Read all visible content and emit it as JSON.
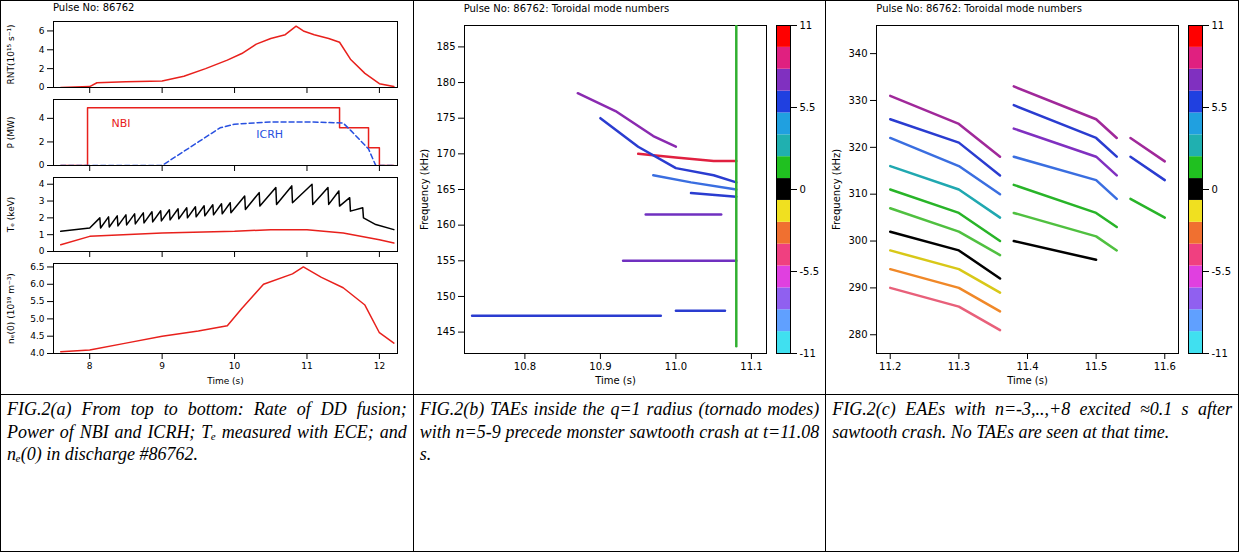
{
  "chart_data": [
    {
      "type": "line",
      "title": "Pulse No: 86762",
      "y_label": "RNT(10¹⁵ s⁻¹)",
      "xlim": [
        7.5,
        12.25
      ],
      "xticks": [
        8,
        9,
        10,
        11,
        12
      ],
      "ylim": [
        0,
        7
      ],
      "yticks": [
        0,
        2,
        4,
        6
      ],
      "series": [
        {
          "color": "#e8201c",
          "line_style": "solid",
          "x": [
            7.6,
            8.0,
            8.1,
            8.5,
            9.0,
            9.3,
            9.6,
            9.9,
            10.1,
            10.3,
            10.5,
            10.7,
            10.85,
            10.95,
            11.1,
            11.3,
            11.45,
            11.6,
            11.8,
            12.0,
            12.2
          ],
          "values": [
            0,
            0.1,
            0.5,
            0.6,
            0.7,
            1.2,
            2.0,
            2.9,
            3.6,
            4.6,
            5.2,
            5.6,
            6.5,
            6.0,
            5.6,
            5.2,
            4.8,
            3.0,
            1.5,
            0.4,
            0.1
          ]
        }
      ]
    },
    {
      "type": "line",
      "y_label": "P (MW)",
      "xlim": [
        7.5,
        12.25
      ],
      "xticks": [
        8,
        9,
        10,
        11,
        12
      ],
      "ylim": [
        0,
        5.6
      ],
      "yticks": [
        0,
        2,
        4
      ],
      "series": [
        {
          "color": "#e8201c",
          "line_style": "solid",
          "x": [
            7.6,
            7.97,
            7.97,
            11.45,
            11.45,
            11.85,
            11.85,
            12.0,
            12.0,
            12.2
          ],
          "values": [
            0,
            0,
            4.9,
            4.9,
            3.2,
            3.2,
            1.5,
            1.5,
            0,
            0
          ]
        },
        {
          "color": "#2850e0",
          "line_style": "dashed",
          "x": [
            7.6,
            9.0,
            9.2,
            9.5,
            9.8,
            10.0,
            10.5,
            11.0,
            11.5,
            11.6,
            11.85,
            11.95,
            12.2
          ],
          "values": [
            0,
            0,
            0.8,
            2.0,
            3.2,
            3.5,
            3.7,
            3.7,
            3.6,
            3.0,
            1.4,
            0,
            0
          ]
        }
      ],
      "annotations": [
        {
          "text": "NBI",
          "x": 8.3,
          "y": 3.6,
          "color": "#e8201c"
        },
        {
          "text": "ICRH",
          "x": 10.3,
          "y": 2.6,
          "color": "#2850e0"
        }
      ]
    },
    {
      "type": "line",
      "y_label": "Tₑ (keV)",
      "xlim": [
        7.5,
        12.25
      ],
      "xticks": [
        8,
        9,
        10,
        11,
        12
      ],
      "ylim": [
        0,
        4.4
      ],
      "yticks": [
        0,
        1,
        2,
        3,
        4
      ],
      "series": [
        {
          "color": "#000000",
          "line_style": "solid",
          "x": [
            7.6,
            8.0,
            8.14,
            8.15,
            8.26,
            8.27,
            8.38,
            8.39,
            8.5,
            8.51,
            8.62,
            8.63,
            8.74,
            8.75,
            8.86,
            8.87,
            8.98,
            8.99,
            9.1,
            9.11,
            9.22,
            9.23,
            9.34,
            9.35,
            9.46,
            9.47,
            9.58,
            9.59,
            9.7,
            9.71,
            9.82,
            9.83,
            9.94,
            9.95,
            10.14,
            10.15,
            10.34,
            10.35,
            10.57,
            10.58,
            10.79,
            10.8,
            11.07,
            11.08,
            11.29,
            11.3,
            11.44,
            11.45,
            11.59,
            11.6,
            11.77,
            11.78,
            11.95,
            12.2
          ],
          "values": [
            1.2,
            1.4,
            2.0,
            1.4,
            2.06,
            1.46,
            2.12,
            1.52,
            2.18,
            1.58,
            2.24,
            1.64,
            2.3,
            1.7,
            2.36,
            1.76,
            2.42,
            1.82,
            2.48,
            1.88,
            2.54,
            1.94,
            2.6,
            2.0,
            2.66,
            2.06,
            2.72,
            2.12,
            2.78,
            2.18,
            2.84,
            2.24,
            2.9,
            2.3,
            3.3,
            2.5,
            3.5,
            2.7,
            3.8,
            2.8,
            3.9,
            2.9,
            4.0,
            2.8,
            3.8,
            2.8,
            3.6,
            2.7,
            3.2,
            2.4,
            2.6,
            2.0,
            1.6,
            1.3
          ]
        },
        {
          "color": "#e8201c",
          "line_style": "solid",
          "x": [
            7.6,
            8.0,
            9.0,
            10.0,
            10.5,
            11.0,
            11.5,
            12.0,
            12.2
          ],
          "values": [
            0.4,
            0.9,
            1.1,
            1.2,
            1.3,
            1.3,
            1.1,
            0.7,
            0.5
          ]
        }
      ]
    },
    {
      "type": "line",
      "x_label": "Time (s)",
      "y_label": "nₑ(0) (10¹⁹ m⁻³)",
      "xlim": [
        7.5,
        12.25
      ],
      "xticks": [
        8,
        9,
        10,
        11,
        12
      ],
      "ylim": [
        4.0,
        6.6
      ],
      "yticks": [
        {
          "value": 4,
          "label": "4.0"
        },
        {
          "value": 4.5,
          "label": "4.5"
        },
        {
          "value": 5,
          "label": "5.0"
        },
        {
          "value": 5.5,
          "label": "5.5"
        },
        {
          "value": 6,
          "label": "6.0"
        },
        {
          "value": 6.5,
          "label": "6.5"
        }
      ],
      "series": [
        {
          "color": "#e8201c",
          "line_style": "solid",
          "x": [
            7.6,
            8.0,
            8.5,
            9.0,
            9.5,
            9.9,
            10.1,
            10.4,
            10.8,
            10.95,
            11.2,
            11.5,
            11.8,
            12.0,
            12.2
          ],
          "values": [
            4.05,
            4.1,
            4.3,
            4.5,
            4.65,
            4.8,
            5.3,
            6.0,
            6.3,
            6.5,
            6.2,
            5.9,
            5.4,
            4.6,
            4.3
          ]
        }
      ]
    },
    {
      "type": "line",
      "title": "Pulse No: 86762: Toroidal mode numbers",
      "x_label": "Time (s)",
      "y_label": "Frequency (kHz)",
      "xlim": [
        10.72,
        11.12
      ],
      "xticks": [
        10.8,
        10.9,
        {
          "value": 11,
          "label": "11.0"
        },
        11.1
      ],
      "ylim": [
        142,
        188
      ],
      "yticks": [
        145,
        150,
        155,
        160,
        165,
        170,
        175,
        180,
        185
      ],
      "series": [
        {
          "color": "#2a3cd0",
          "x": [
            10.73,
            10.98
          ],
          "values": [
            147.3,
            147.3
          ]
        },
        {
          "color": "#2a3cd0",
          "x": [
            11.0,
            11.065
          ],
          "values": [
            148,
            148
          ]
        },
        {
          "color": "#7030c0",
          "x": [
            10.93,
            11.08
          ],
          "values": [
            155,
            155
          ]
        },
        {
          "color": "#7030c0",
          "x": [
            10.96,
            11.06
          ],
          "values": [
            161.5,
            161.5
          ]
        },
        {
          "color": "#8a2ab0",
          "x": [
            10.87,
            10.92,
            10.97,
            11.0
          ],
          "values": [
            178.5,
            176,
            172.5,
            171
          ]
        },
        {
          "color": "#e02040",
          "x": [
            10.95,
            11.0,
            11.05,
            11.08
          ],
          "values": [
            170,
            169.5,
            169,
            169
          ]
        },
        {
          "color": "#2a3cd0",
          "x": [
            10.9,
            10.95,
            11.0,
            11.05,
            11.08
          ],
          "values": [
            175,
            171,
            168,
            167,
            166
          ]
        },
        {
          "color": "#3a6ee0",
          "x": [
            10.97,
            11.02,
            11.08
          ],
          "values": [
            167,
            166,
            165
          ]
        },
        {
          "color": "#2a3cd0",
          "x": [
            11.02,
            11.08
          ],
          "values": [
            164.5,
            164
          ]
        },
        {
          "color": "#30b030",
          "x": [
            11.08,
            11.08
          ],
          "values": [
            143,
            188
          ]
        }
      ],
      "colorbar": {
        "range": [
          -11,
          11
        ],
        "ticks": [
          11,
          5.5,
          0,
          -5.5,
          -11
        ],
        "colors": [
          "#40e0f0",
          "#60a0ff",
          "#9060f0",
          "#e040e0",
          "#f04080",
          "#f07030",
          "#f0e020",
          "#000000",
          "#20c020",
          "#20b0b0",
          "#20a0e0",
          "#2040e0",
          "#8030c0",
          "#e02080",
          "#ff0000"
        ]
      }
    },
    {
      "type": "line",
      "title": "Pulse No: 86762: Toroidal mode numbers",
      "x_label": "Time (s)",
      "y_label": "Frequency (kHz)",
      "xlim": [
        11.18,
        11.62
      ],
      "xticks": [
        11.2,
        11.3,
        11.4,
        11.5,
        11.6
      ],
      "ylim": [
        276,
        346
      ],
      "yticks": [
        280,
        290,
        300,
        310,
        320,
        330,
        340
      ],
      "series": [
        {
          "color": "#a0289a",
          "x": [
            11.2,
            11.3,
            11.36
          ],
          "values": [
            331,
            325,
            318
          ]
        },
        {
          "color": "#2a3cd0",
          "x": [
            11.2,
            11.3,
            11.36
          ],
          "values": [
            326,
            321,
            314
          ]
        },
        {
          "color": "#3a6ee0",
          "x": [
            11.2,
            11.3,
            11.36
          ],
          "values": [
            322,
            316,
            310
          ]
        },
        {
          "color": "#20a8b0",
          "x": [
            11.2,
            11.3,
            11.36
          ],
          "values": [
            316,
            311,
            305
          ]
        },
        {
          "color": "#28b428",
          "x": [
            11.2,
            11.3,
            11.36
          ],
          "values": [
            311,
            306,
            300
          ]
        },
        {
          "color": "#50c040",
          "x": [
            11.2,
            11.3,
            11.36
          ],
          "values": [
            307,
            302,
            297
          ]
        },
        {
          "color": "#000000",
          "x": [
            11.2,
            11.3,
            11.36
          ],
          "values": [
            302,
            298,
            292
          ]
        },
        {
          "color": "#d8c818",
          "x": [
            11.2,
            11.3,
            11.36
          ],
          "values": [
            298,
            294,
            289
          ]
        },
        {
          "color": "#f08828",
          "x": [
            11.2,
            11.3,
            11.36
          ],
          "values": [
            294,
            290,
            285
          ]
        },
        {
          "color": "#e8607a",
          "x": [
            11.2,
            11.3,
            11.36
          ],
          "values": [
            290,
            286,
            281
          ]
        },
        {
          "color": "#a0289a",
          "x": [
            11.38,
            11.5,
            11.53
          ],
          "values": [
            333,
            326,
            322
          ]
        },
        {
          "color": "#2a3cd0",
          "x": [
            11.38,
            11.5,
            11.53
          ],
          "values": [
            329,
            322,
            318
          ]
        },
        {
          "color": "#8030c0",
          "x": [
            11.38,
            11.5,
            11.53
          ],
          "values": [
            324,
            318,
            314
          ]
        },
        {
          "color": "#3a6ee0",
          "x": [
            11.38,
            11.5,
            11.53
          ],
          "values": [
            318,
            313,
            309
          ]
        },
        {
          "color": "#28b428",
          "x": [
            11.38,
            11.5,
            11.53
          ],
          "values": [
            312,
            306,
            303
          ]
        },
        {
          "color": "#50c040",
          "x": [
            11.38,
            11.5,
            11.53
          ],
          "values": [
            306,
            301,
            298
          ]
        },
        {
          "color": "#000000",
          "x": [
            11.38,
            11.5
          ],
          "values": [
            300,
            296
          ]
        },
        {
          "color": "#a0289a",
          "x": [
            11.55,
            11.6
          ],
          "values": [
            322,
            317
          ]
        },
        {
          "color": "#2a3cd0",
          "x": [
            11.55,
            11.6
          ],
          "values": [
            318,
            313
          ]
        },
        {
          "color": "#28b428",
          "x": [
            11.55,
            11.6
          ],
          "values": [
            309,
            305
          ]
        }
      ],
      "colorbar": {
        "range": [
          -11,
          11
        ],
        "ticks": [
          11,
          5.5,
          0,
          -5.5,
          -11
        ],
        "colors": [
          "#40e0f0",
          "#60a0ff",
          "#9060f0",
          "#e040e0",
          "#f04080",
          "#f07030",
          "#f0e020",
          "#000000",
          "#20c020",
          "#20b0b0",
          "#20a0e0",
          "#2040e0",
          "#8030c0",
          "#e02080",
          "#ff0000"
        ]
      }
    }
  ],
  "captions": [
    "FIG.2(a) From top to bottom: Rate of DD fusion; Power of NBI and ICRH; Tₑ measured with ECE; and nₑ(0) in discharge #86762.",
    "FIG.2(b) TAEs inside the q=1 radius (tornado modes) with n=5-9 precede monster sawtooth crash at t=11.08 s.",
    "FIG.2(c) EAEs with n=-3,..,+8 excited ≈0.1 s after sawtooth crash. No TAEs are seen at that time."
  ]
}
